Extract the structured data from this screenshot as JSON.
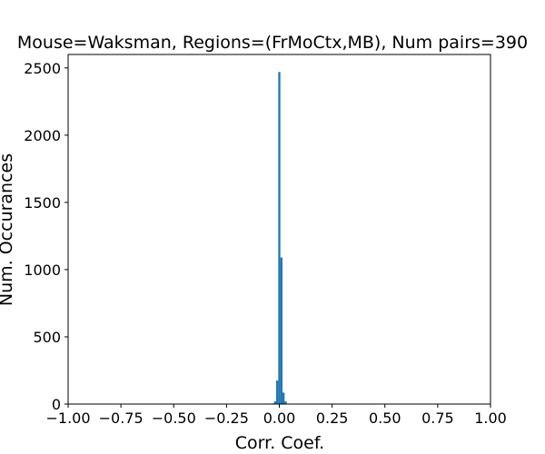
{
  "chart_data": {
    "type": "bar",
    "title": "Mouse=Waksman, Regions=(FrMoCtx,MB), Num pairs=390",
    "xlabel": "Corr. Coef.",
    "ylabel": "Num. Occurances",
    "xlim": [
      -1.0,
      1.0
    ],
    "ylim": [
      0,
      2600
    ],
    "xticks": [
      -1.0,
      -0.75,
      -0.5,
      -0.25,
      0.0,
      0.25,
      0.5,
      0.75,
      1.0
    ],
    "xtick_labels": [
      "−1.00",
      "−0.75",
      "−0.50",
      "−0.25",
      "0.00",
      "0.25",
      "0.50",
      "0.75",
      "1.00"
    ],
    "yticks": [
      0,
      500,
      1000,
      1500,
      2000,
      2500
    ],
    "ytick_labels": [
      "0",
      "500",
      "1000",
      "1500",
      "2000",
      "2500"
    ],
    "grid": false,
    "bar_color": "#1f77b4",
    "x": [
      -0.03,
      -0.02,
      -0.01,
      0.0,
      0.01,
      0.02,
      0.03
    ],
    "values": [
      5,
      20,
      175,
      2470,
      1090,
      85,
      20
    ]
  }
}
